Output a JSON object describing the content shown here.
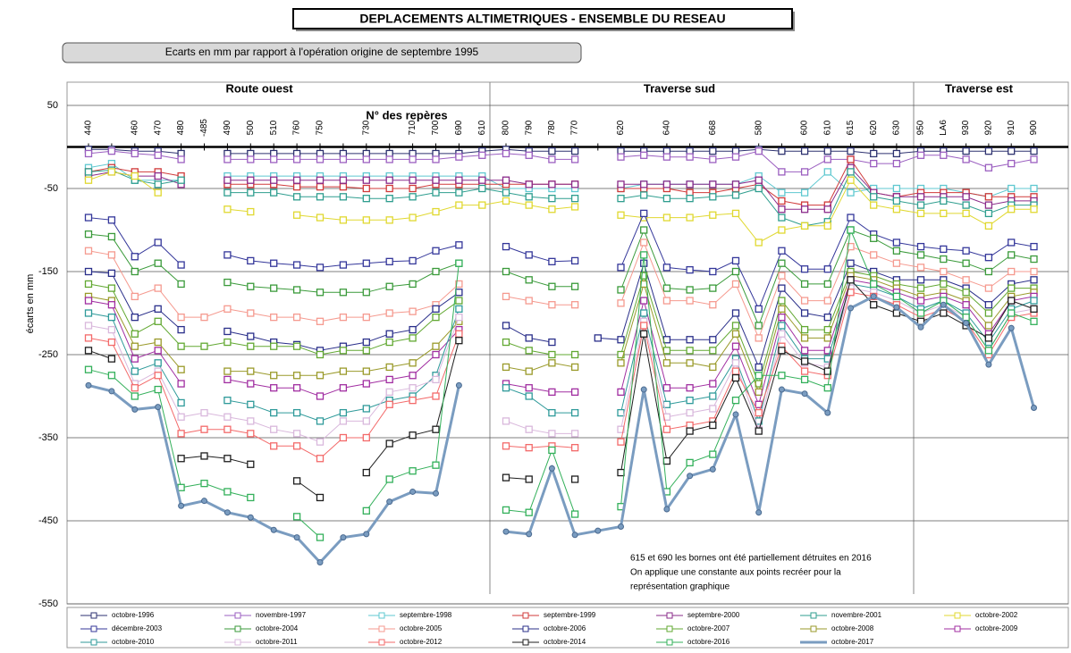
{
  "chart_data": {
    "type": "line",
    "title": "DEPLACEMENTS ALTIMETRIQUES - ENSEMBLE DU RESEAU",
    "subtitle": "Ecarts en mm par rapport à l'opération origine de septembre 1995",
    "y_label": "écarts en mm",
    "x_label": "N° des repères",
    "sections": [
      "Route ouest",
      "Traverse sud",
      "Traverse est"
    ],
    "annotation": [
      "615 et 690 les bornes ont été partiellement détruites en 2016",
      "On applique une constante aux points recréer pour la",
      "représentation graphique"
    ],
    "categories": [
      "440",
      null,
      "460",
      "470",
      "480",
      "-485",
      "490",
      "500",
      "510",
      "760",
      "750",
      null,
      "730",
      null,
      "710",
      "700",
      "690",
      "610",
      "800",
      "790",
      "780",
      "770",
      null,
      "620",
      null,
      "640",
      null,
      "668",
      null,
      "580",
      null,
      "600",
      "610",
      "615",
      "620",
      "630",
      "950",
      "LA6",
      "930",
      "920",
      "910",
      "900"
    ],
    "ylim": [
      -550,
      50
    ],
    "yticks": [
      50,
      -50,
      -150,
      -250,
      -350,
      -450,
      -550
    ],
    "grid": true,
    "series": [
      {
        "name": "octobre-1996",
        "color": "#2e3270",
        "values": [
          -3,
          -3,
          -5,
          -5,
          -8,
          null,
          -8,
          -8,
          -8,
          -8,
          -8,
          -8,
          -8,
          -8,
          -8,
          -8,
          -8,
          -5,
          -3,
          -5,
          -5,
          -5,
          null,
          -5,
          -5,
          -5,
          -5,
          -5,
          -5,
          -3,
          -5,
          -5,
          -5,
          -5,
          -8,
          -8,
          -5,
          -5,
          -5,
          -5,
          -5,
          -5
        ]
      },
      {
        "name": "novembre-1997",
        "color": "#9b5fc0",
        "values": [
          -8,
          -5,
          -8,
          -10,
          -15,
          null,
          -15,
          -15,
          -15,
          -15,
          -15,
          -15,
          -15,
          -15,
          -15,
          -15,
          -12,
          -10,
          -8,
          -10,
          -15,
          -15,
          null,
          -12,
          -10,
          -12,
          -12,
          -15,
          -12,
          -5,
          -30,
          -30,
          -15,
          -15,
          -20,
          -20,
          -10,
          -10,
          -15,
          -25,
          -20,
          -15
        ]
      },
      {
        "name": "septembre-1998",
        "color": "#5fc8d0",
        "values": [
          -25,
          -20,
          -40,
          -40,
          -40,
          null,
          -35,
          -35,
          -35,
          -35,
          -35,
          -35,
          -35,
          -35,
          -35,
          -35,
          -35,
          -35,
          -50,
          -50,
          -50,
          -50,
          null,
          -50,
          -45,
          -45,
          -45,
          -45,
          -45,
          -35,
          -55,
          -55,
          -30,
          -55,
          -50,
          -50,
          -50,
          -50,
          -55,
          -60,
          -50,
          -50
        ]
      },
      {
        "name": "septembre-1999",
        "color": "#d03a3a",
        "values": [
          -30,
          -25,
          -30,
          -30,
          -35,
          null,
          -45,
          -45,
          -45,
          -48,
          -48,
          -48,
          -50,
          -50,
          -50,
          -45,
          -45,
          -45,
          -45,
          -45,
          -45,
          -45,
          null,
          -50,
          -50,
          -50,
          -55,
          -55,
          -50,
          -45,
          -65,
          -70,
          -70,
          -15,
          -55,
          -60,
          -55,
          -55,
          -55,
          -60,
          -60,
          -60
        ]
      },
      {
        "name": "septembre-2000",
        "color": "#8a2b8a",
        "values": [
          -35,
          -30,
          -35,
          -35,
          -45,
          null,
          -40,
          -40,
          -40,
          -40,
          -40,
          -40,
          -40,
          -40,
          -40,
          -40,
          -40,
          -40,
          -40,
          -45,
          -45,
          -45,
          null,
          -45,
          -45,
          -45,
          -45,
          -45,
          -45,
          -40,
          -75,
          -75,
          -75,
          -25,
          -55,
          -60,
          -60,
          -60,
          -60,
          -70,
          -65,
          -65
        ]
      },
      {
        "name": "novembre-2001",
        "color": "#2f9e8f",
        "values": [
          -30,
          -28,
          -40,
          -45,
          -40,
          null,
          -55,
          -55,
          -55,
          -60,
          -60,
          -60,
          -62,
          -62,
          -60,
          -55,
          -55,
          -50,
          -55,
          -60,
          -62,
          -62,
          null,
          -62,
          -58,
          -62,
          -62,
          -60,
          -58,
          -50,
          -85,
          -95,
          -90,
          -30,
          -60,
          -65,
          -70,
          -65,
          -70,
          -80,
          -70,
          -70
        ]
      },
      {
        "name": "octobre-2002",
        "color": "#e0d830",
        "values": [
          -40,
          -30,
          -35,
          -55,
          null,
          null,
          -75,
          -78,
          null,
          -82,
          -85,
          -88,
          -88,
          -88,
          -85,
          -78,
          -70,
          -70,
          -65,
          -70,
          -75,
          -72,
          null,
          -82,
          -85,
          -85,
          -85,
          -82,
          -80,
          -115,
          -100,
          -95,
          -95,
          -40,
          -70,
          -75,
          -80,
          -80,
          -80,
          -95,
          -75,
          -75
        ]
      },
      {
        "name": "décembre-2003",
        "color": "#34379a",
        "values": [
          -85,
          -88,
          -132,
          -115,
          -142,
          null,
          -130,
          -137,
          -140,
          -142,
          -145,
          -142,
          -140,
          -138,
          -137,
          -125,
          -118,
          null,
          -120,
          -130,
          -138,
          -137,
          null,
          -145,
          -80,
          -145,
          -148,
          -150,
          -137,
          -195,
          -125,
          -147,
          -147,
          -85,
          -105,
          -115,
          -120,
          -123,
          -125,
          -133,
          -115,
          -120
        ]
      },
      {
        "name": "octobre-2004",
        "color": "#3a9a3a",
        "values": [
          -105,
          -108,
          -150,
          -140,
          -165,
          null,
          -163,
          -168,
          -170,
          -172,
          -175,
          -175,
          -175,
          -168,
          -165,
          -150,
          -140,
          null,
          -150,
          -160,
          -168,
          -168,
          null,
          -172,
          -100,
          -170,
          -172,
          -170,
          -150,
          -215,
          -140,
          -165,
          -165,
          -100,
          -110,
          -125,
          -130,
          -135,
          -140,
          -150,
          -130,
          -135
        ]
      },
      {
        "name": "octobre-2005",
        "color": "#f59a8f",
        "values": [
          -125,
          -130,
          -180,
          -170,
          -205,
          -205,
          -195,
          -200,
          -205,
          -205,
          -210,
          -205,
          -205,
          -200,
          -198,
          -190,
          -165,
          null,
          -180,
          -185,
          -190,
          -190,
          null,
          -188,
          -115,
          -185,
          -185,
          -190,
          -165,
          -230,
          -155,
          -185,
          -185,
          -120,
          -130,
          -140,
          -145,
          -150,
          -160,
          -170,
          -150,
          -150
        ]
      },
      {
        "name": "octobre-2006",
        "color": "#2a2f8a",
        "values": [
          -150,
          -152,
          -205,
          -195,
          -220,
          null,
          -222,
          -228,
          -235,
          -238,
          -245,
          -240,
          -235,
          -225,
          -220,
          -195,
          -175,
          null,
          -215,
          -230,
          -235,
          null,
          -230,
          -232,
          -140,
          -232,
          -232,
          -232,
          -200,
          -265,
          -170,
          -200,
          -205,
          -140,
          -150,
          -160,
          -160,
          -160,
          -170,
          -190,
          -165,
          -160
        ]
      },
      {
        "name": "octobre-2007",
        "color": "#62a832",
        "values": [
          -165,
          -170,
          -225,
          -210,
          -240,
          -240,
          -235,
          -240,
          -240,
          -240,
          -250,
          -245,
          -245,
          -235,
          -230,
          -205,
          -185,
          null,
          -235,
          -245,
          -250,
          -250,
          null,
          -250,
          -155,
          -245,
          -245,
          -245,
          -215,
          -285,
          -185,
          -220,
          -220,
          -150,
          -155,
          -165,
          -170,
          -165,
          -175,
          -200,
          -170,
          -170
        ]
      },
      {
        "name": "octobre-2008",
        "color": "#9a9a2a",
        "values": [
          -180,
          -185,
          -240,
          -235,
          -268,
          null,
          -270,
          -270,
          -275,
          -275,
          -275,
          -270,
          -270,
          -265,
          -260,
          -240,
          -210,
          null,
          -265,
          -270,
          -260,
          -265,
          null,
          -260,
          -165,
          -260,
          -260,
          -265,
          -225,
          -295,
          -195,
          -230,
          -230,
          -155,
          -160,
          -170,
          -180,
          -175,
          -185,
          -215,
          -180,
          -175
        ]
      },
      {
        "name": "octobre-2009",
        "color": "#a12ea1",
        "values": [
          -185,
          -190,
          -255,
          -245,
          -285,
          null,
          -280,
          -285,
          -290,
          -290,
          -300,
          -290,
          -285,
          -280,
          -275,
          -250,
          -220,
          null,
          -285,
          -290,
          -295,
          -295,
          null,
          -295,
          -185,
          -290,
          -290,
          -285,
          -240,
          -310,
          -205,
          -245,
          -245,
          -160,
          -165,
          -175,
          -185,
          -180,
          -190,
          -225,
          -185,
          -180
        ]
      },
      {
        "name": "octobre-2010",
        "color": "#2f9a9a",
        "values": [
          -200,
          -205,
          -270,
          -260,
          -308,
          null,
          -305,
          -310,
          -320,
          -320,
          -330,
          -320,
          -315,
          -305,
          -300,
          -275,
          -195,
          null,
          -290,
          -300,
          -320,
          -320,
          null,
          -320,
          -200,
          -310,
          -305,
          -300,
          -255,
          -330,
          -215,
          -255,
          -255,
          -165,
          -170,
          -180,
          -195,
          -185,
          -200,
          -235,
          -195,
          -185
        ]
      },
      {
        "name": "octobre-2011",
        "color": "#d9b8dc",
        "values": [
          -215,
          -220,
          -285,
          -270,
          -325,
          -320,
          -325,
          -330,
          -340,
          -345,
          -355,
          -330,
          -330,
          -295,
          -290,
          -280,
          -205,
          null,
          -330,
          -340,
          -345,
          -345,
          null,
          -340,
          -210,
          -325,
          -320,
          -315,
          -260,
          -340,
          -225,
          -260,
          -265,
          -170,
          -175,
          -185,
          -200,
          -190,
          -205,
          -245,
          -200,
          -195
        ]
      },
      {
        "name": "octobre-2012",
        "color": "#f36a6a",
        "values": [
          -230,
          -235,
          -290,
          -275,
          -345,
          -340,
          -340,
          -345,
          -360,
          -360,
          -375,
          -350,
          -350,
          -310,
          -305,
          -300,
          -225,
          null,
          -360,
          -362,
          -360,
          -362,
          null,
          -355,
          -215,
          -340,
          -335,
          -330,
          -270,
          -320,
          -240,
          -270,
          -275,
          -175,
          -180,
          -190,
          -205,
          -195,
          -210,
          -250,
          -205,
          -200
        ]
      },
      {
        "name": "octobre-2014",
        "color": "#1e1e1e",
        "values": [
          -245,
          -255,
          null,
          null,
          -375,
          -372,
          -375,
          -382,
          null,
          -402,
          -422,
          null,
          -392,
          -357,
          -347,
          -340,
          -233,
          null,
          -398,
          -400,
          null,
          -400,
          null,
          -392,
          -225,
          -378,
          -342,
          -335,
          -278,
          -342,
          -245,
          -258,
          -270,
          -160,
          -190,
          -200,
          -210,
          -200,
          -215,
          -230,
          -185,
          -195
        ]
      },
      {
        "name": "octobre-2016",
        "color": "#33b05a",
        "values": [
          -268,
          -275,
          -300,
          -292,
          -410,
          -405,
          -415,
          -422,
          null,
          -445,
          -470,
          null,
          -438,
          -400,
          -390,
          -383,
          -140,
          null,
          -437,
          -440,
          -365,
          -442,
          null,
          -433,
          -130,
          -415,
          -380,
          -370,
          -305,
          -275,
          -275,
          -280,
          -290,
          -100,
          -165,
          -180,
          -200,
          -185,
          -205,
          -245,
          -200,
          -210
        ]
      },
      {
        "name": "octobre-2017",
        "color": "#7a9cc0",
        "values": [
          -287,
          -294,
          -316,
          -313,
          -432,
          -426,
          -440,
          -446,
          -461,
          -470,
          -500,
          -470,
          -466,
          -427,
          -415,
          -417,
          -287,
          null,
          -463,
          -466,
          -387,
          -467,
          -462,
          -457,
          -292,
          -436,
          -396,
          -388,
          -322,
          -440,
          -292,
          -297,
          -320,
          -194,
          -180,
          -193,
          -217,
          -190,
          -212,
          -262,
          -218,
          -314
        ]
      }
    ]
  }
}
